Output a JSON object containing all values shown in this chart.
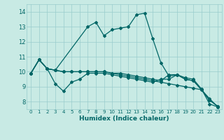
{
  "xlabel": "Humidex (Indice chaleur)",
  "xlim": [
    -0.5,
    23.5
  ],
  "ylim": [
    7.5,
    14.5
  ],
  "yticks": [
    8,
    9,
    10,
    11,
    12,
    13,
    14
  ],
  "xticks": [
    0,
    1,
    2,
    3,
    4,
    5,
    6,
    7,
    8,
    9,
    10,
    11,
    12,
    13,
    14,
    15,
    16,
    17,
    18,
    19,
    20,
    21,
    22,
    23
  ],
  "bg_color": "#c8eae4",
  "grid_color": "#99cccc",
  "line_color": "#006666",
  "lines": [
    {
      "x": [
        0,
        1,
        2,
        3,
        7,
        8,
        9,
        10,
        11,
        12,
        13,
        14,
        15,
        16,
        17,
        18,
        19,
        20,
        21,
        22,
        23
      ],
      "y": [
        9.9,
        10.8,
        10.2,
        10.1,
        13.0,
        13.3,
        12.4,
        12.8,
        12.9,
        13.0,
        13.8,
        13.9,
        12.2,
        10.6,
        9.7,
        9.8,
        9.6,
        9.5,
        8.85,
        7.85,
        7.65
      ]
    },
    {
      "x": [
        0,
        1,
        2,
        3,
        4,
        5,
        6,
        7,
        8,
        9,
        10,
        11,
        12,
        13,
        14,
        15,
        16,
        17,
        18,
        19,
        20,
        21,
        22,
        23
      ],
      "y": [
        9.9,
        10.8,
        10.2,
        9.2,
        8.7,
        9.3,
        9.5,
        9.9,
        9.9,
        9.9,
        9.8,
        9.7,
        9.6,
        9.5,
        9.4,
        9.3,
        9.5,
        9.5,
        9.8,
        9.5,
        9.4,
        8.8,
        8.1,
        7.7
      ]
    },
    {
      "x": [
        0,
        1,
        2,
        3,
        4,
        5,
        6,
        7,
        8,
        9,
        10,
        11,
        12,
        13,
        14,
        15,
        16,
        17,
        18,
        19,
        20,
        21,
        22,
        23
      ],
      "y": [
        9.9,
        10.8,
        10.2,
        10.1,
        10.0,
        10.0,
        10.0,
        10.0,
        10.0,
        10.0,
        9.9,
        9.9,
        9.8,
        9.7,
        9.6,
        9.5,
        9.4,
        9.8,
        9.8,
        9.5,
        9.4,
        8.8,
        8.1,
        7.7
      ]
    },
    {
      "x": [
        0,
        1,
        2,
        3,
        4,
        5,
        6,
        7,
        8,
        9,
        10,
        11,
        12,
        13,
        14,
        15,
        16,
        17,
        18,
        19,
        20,
        21,
        22,
        23
      ],
      "y": [
        9.9,
        10.8,
        10.2,
        10.1,
        10.0,
        10.0,
        10.0,
        10.0,
        10.0,
        10.0,
        9.9,
        9.8,
        9.7,
        9.6,
        9.5,
        9.4,
        9.3,
        9.2,
        9.1,
        9.0,
        8.9,
        8.8,
        8.2,
        7.65
      ]
    }
  ]
}
